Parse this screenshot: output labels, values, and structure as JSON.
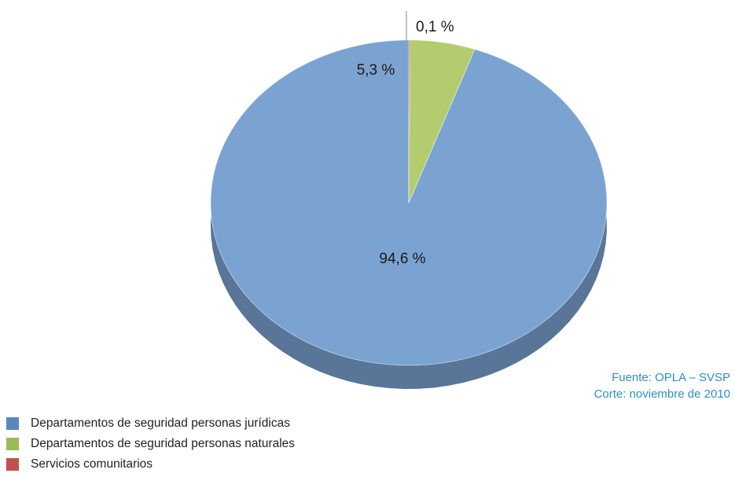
{
  "chart_data": {
    "type": "pie",
    "style": "3d",
    "categories": [
      "Departamentos de seguridad personas jurídicas",
      "Departamentos de seguridad personas naturales",
      "Servicios comunitarios"
    ],
    "values": [
      94.6,
      5.3,
      0.1
    ],
    "data_labels": [
      "94,6 %",
      "5,3 %",
      "0,1 %"
    ],
    "colors": [
      "#7ba3d2",
      "#b3cc6e",
      "#c9665f"
    ],
    "legend_position": "bottom-left"
  },
  "source": {
    "line1": "Fuente: OPLA – SVSP",
    "line2": "Corte: noviembre de 2010"
  },
  "legend": {
    "items": [
      {
        "label": "Departamentos de seguridad personas jurídicas",
        "color": "#5b87bd"
      },
      {
        "label": "Departamentos de seguridad personas naturales",
        "color": "#9bbb59"
      },
      {
        "label": "Servicios comunitarios",
        "color": "#c0504d"
      }
    ]
  }
}
